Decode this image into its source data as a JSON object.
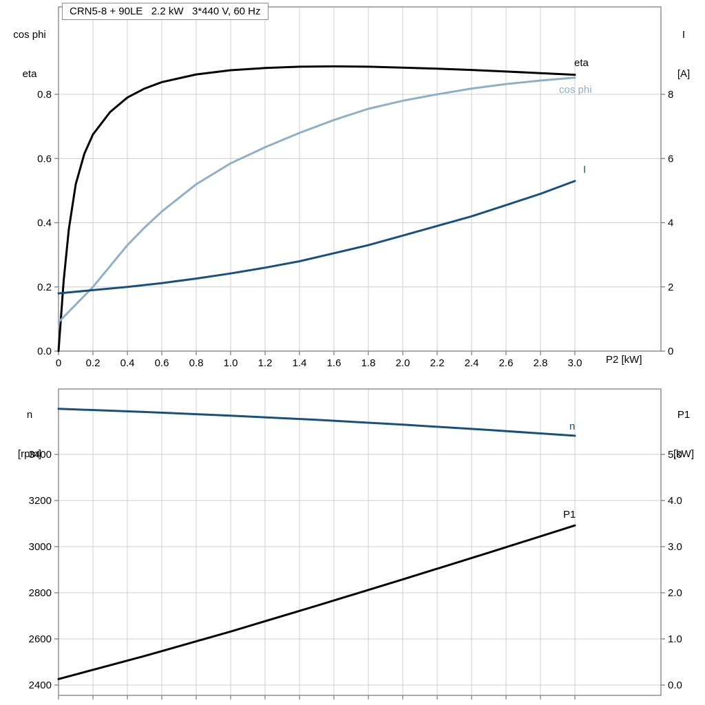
{
  "title": "CRN5-8 + 90LE   2.2 kW   3*440 V, 60 Hz",
  "colors": {
    "black": "#000000",
    "dark_blue": "#17507e",
    "light_blue": "#8fafc9",
    "grid": "#cccccc",
    "frame": "#808080"
  },
  "axis_labels": {
    "top_left_line1": "cos phi",
    "top_left_line2": "eta",
    "top_right_line1": "I",
    "top_right_line2": "[A]",
    "x_label": "P2 [kW]",
    "bottom_left_line1": "n",
    "bottom_left_line2": "[rpm]",
    "bottom_right_line1": "P1",
    "bottom_right_line2": "[kW]"
  },
  "chart_data": [
    {
      "type": "line",
      "panel": "top",
      "title": "CRN5-8 + 90LE   2.2 kW   3*440 V, 60 Hz",
      "xlabel": "P2 [kW]",
      "xlim": [
        0,
        3.5
      ],
      "grid": true,
      "legend_position": "curve-end-labels",
      "x_ticks": {
        "values": [
          0,
          0.2,
          0.4,
          0.6,
          0.8,
          1.0,
          1.2,
          1.4,
          1.6,
          1.8,
          2.0,
          2.2,
          2.4,
          2.6,
          2.8,
          3.0
        ],
        "labels": [
          "0",
          "0.2",
          "0.4",
          "0.6",
          "0.8",
          "1.0",
          "1.2",
          "1.4",
          "1.6",
          "1.8",
          "2.0",
          "2.2",
          "2.4",
          "2.6",
          "2.8",
          "3.0"
        ]
      },
      "y_left": {
        "label": "cos phi / eta",
        "lim": [
          0,
          1.0724
        ],
        "values": [
          0,
          0.2,
          0.4,
          0.6,
          0.8
        ],
        "labels": [
          "0.0",
          "0.2",
          "0.4",
          "0.6",
          "0.8"
        ]
      },
      "y_right": {
        "label": "I [A]",
        "lim": [
          0,
          10.724
        ],
        "values": [
          0,
          2,
          4,
          6,
          8
        ],
        "labels": [
          "0",
          "2",
          "4",
          "6",
          "8"
        ]
      },
      "series": [
        {
          "name": "eta",
          "axis": "left",
          "color": "black",
          "x": [
            0,
            0.03,
            0.06,
            0.1,
            0.15,
            0.2,
            0.3,
            0.4,
            0.5,
            0.6,
            0.8,
            1.0,
            1.2,
            1.4,
            1.6,
            1.8,
            2.0,
            2.2,
            2.4,
            2.6,
            2.8,
            3.0
          ],
          "y": [
            0,
            0.22,
            0.38,
            0.52,
            0.615,
            0.675,
            0.745,
            0.79,
            0.818,
            0.838,
            0.862,
            0.875,
            0.882,
            0.886,
            0.887,
            0.886,
            0.883,
            0.88,
            0.876,
            0.871,
            0.866,
            0.861
          ]
        },
        {
          "name": "cos phi",
          "axis": "left",
          "color": "light_blue",
          "x": [
            0,
            0.1,
            0.2,
            0.3,
            0.4,
            0.5,
            0.6,
            0.8,
            1.0,
            1.2,
            1.4,
            1.6,
            1.8,
            2.0,
            2.2,
            2.4,
            2.6,
            2.8,
            3.0
          ],
          "y": [
            0.09,
            0.145,
            0.2,
            0.265,
            0.33,
            0.385,
            0.435,
            0.52,
            0.585,
            0.635,
            0.68,
            0.72,
            0.755,
            0.78,
            0.8,
            0.818,
            0.832,
            0.843,
            0.852
          ]
        },
        {
          "name": "I",
          "axis": "right",
          "color": "dark_blue",
          "x": [
            0,
            0.2,
            0.4,
            0.6,
            0.8,
            1.0,
            1.2,
            1.4,
            1.6,
            1.8,
            2.0,
            2.2,
            2.4,
            2.6,
            2.8,
            3.0
          ],
          "y": [
            1.8,
            1.9,
            2.0,
            2.12,
            2.26,
            2.42,
            2.6,
            2.8,
            3.05,
            3.3,
            3.6,
            3.9,
            4.2,
            4.55,
            4.9,
            5.3
          ]
        }
      ]
    },
    {
      "type": "line",
      "panel": "bottom",
      "xlabel": "",
      "xlim": [
        0,
        3.5
      ],
      "grid": true,
      "legend_position": "curve-end-labels",
      "x_ticks": {
        "values": [
          0,
          0.2,
          0.4,
          0.6,
          0.8,
          1.0,
          1.2,
          1.4,
          1.6,
          1.8,
          2.0,
          2.2,
          2.4,
          2.6,
          2.8,
          3.0
        ],
        "labels": []
      },
      "y_left": {
        "label": "n [rpm]",
        "lim": [
          2355.2,
          3683.6
        ],
        "values": [
          2400,
          2600,
          2800,
          3000,
          3200,
          3400
        ],
        "labels": [
          "2400",
          "2600",
          "2800",
          "3000",
          "3200",
          "3400"
        ]
      },
      "y_right": {
        "label": "P1 [kW]",
        "lim": [
          -0.224,
          6.418
        ],
        "values": [
          0,
          1,
          2,
          3,
          4,
          5
        ],
        "labels": [
          "0.0",
          "1.0",
          "2.0",
          "3.0",
          "4.0",
          "5.0"
        ]
      },
      "series": [
        {
          "name": "n",
          "axis": "left",
          "color": "dark_blue",
          "x": [
            0,
            0.5,
            1.0,
            1.5,
            2.0,
            2.5,
            3.0
          ],
          "y": [
            3598,
            3584,
            3568,
            3550,
            3529,
            3506,
            3481
          ]
        },
        {
          "name": "P1",
          "axis": "right",
          "color": "black",
          "x": [
            0,
            0.5,
            1.0,
            1.5,
            2.0,
            2.5,
            3.0
          ],
          "y": [
            0.13,
            0.63,
            1.16,
            1.72,
            2.29,
            2.87,
            3.46
          ]
        }
      ]
    }
  ]
}
